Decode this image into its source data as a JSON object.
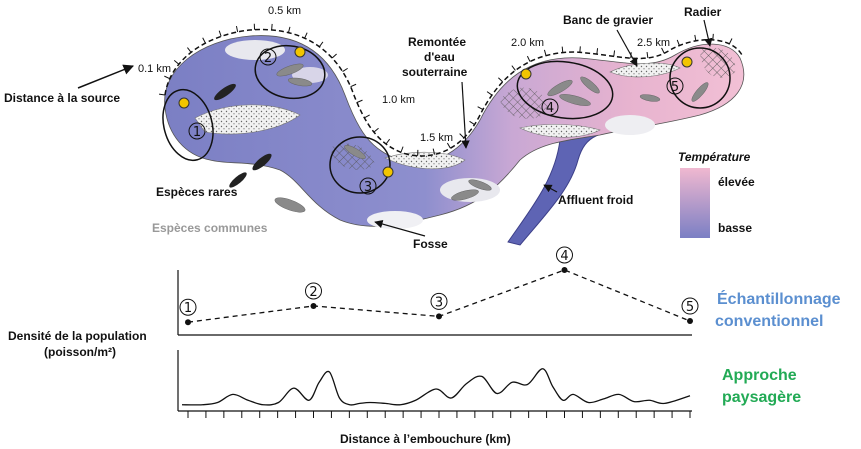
{
  "distance_markers": [
    "0.1 km",
    "0.5 km",
    "1.0 km",
    "1.5 km",
    "2.0 km",
    "2.5 km"
  ],
  "labels": {
    "distance_source": "Distance à la source",
    "groundwater_line1": "Remontée",
    "groundwater_line2": "d'eau",
    "groundwater_line3": "souterraine",
    "gravel_bar": "Banc de gravier",
    "riffle": "Radier",
    "rare_species": "Espèces rares",
    "common_species": "Espèces communes",
    "pool": "Fosse",
    "cold_tributary": "Affluent froid"
  },
  "legend": {
    "title": "Température",
    "high": "élevée",
    "low": "basse",
    "color_high": "#f0b8d0",
    "color_low": "#7b7fc4"
  },
  "sites": [
    "①",
    "②",
    "③",
    "④",
    "⑤"
  ],
  "chart_data": {
    "type": "line",
    "ylabel_line1": "Densité de la population",
    "ylabel_line2": "(poisson/m²)",
    "xlabel": "Distance à l’embouchure (km)",
    "conventional": {
      "name_line1": "Échantillonnage",
      "name_line2": "conventionnel",
      "color": "#5b8fd0",
      "site_labels": [
        "①",
        "②",
        "③",
        "④",
        "⑤"
      ],
      "site_positions": [
        0,
        0.25,
        0.5,
        0.75,
        1.0
      ],
      "values": [
        0.1,
        0.38,
        0.2,
        1.0,
        0.12
      ]
    },
    "landscape": {
      "name_line1": "Approche",
      "name_line2": "paysagère",
      "color": "#22aa55",
      "x": [
        0,
        0.04,
        0.07,
        0.1,
        0.13,
        0.16,
        0.19,
        0.22,
        0.25,
        0.27,
        0.29,
        0.31,
        0.33,
        0.35,
        0.37,
        0.4,
        0.43,
        0.46,
        0.5,
        0.53,
        0.56,
        0.59,
        0.62,
        0.65,
        0.68,
        0.71,
        0.73,
        0.75,
        0.77,
        0.8,
        0.83,
        0.86,
        0.89,
        0.92,
        0.95,
        1.0
      ],
      "values": [
        0.05,
        0.05,
        0.1,
        0.28,
        0.15,
        0.05,
        0.1,
        0.42,
        0.15,
        0.55,
        0.78,
        0.2,
        0.05,
        0.08,
        0.1,
        0.08,
        0.05,
        0.15,
        0.4,
        0.2,
        0.52,
        0.68,
        0.3,
        0.55,
        0.5,
        0.85,
        0.45,
        0.15,
        0.28,
        0.1,
        0.18,
        0.28,
        0.12,
        0.15,
        0.08,
        0.25
      ]
    },
    "x_ticks": 28
  }
}
